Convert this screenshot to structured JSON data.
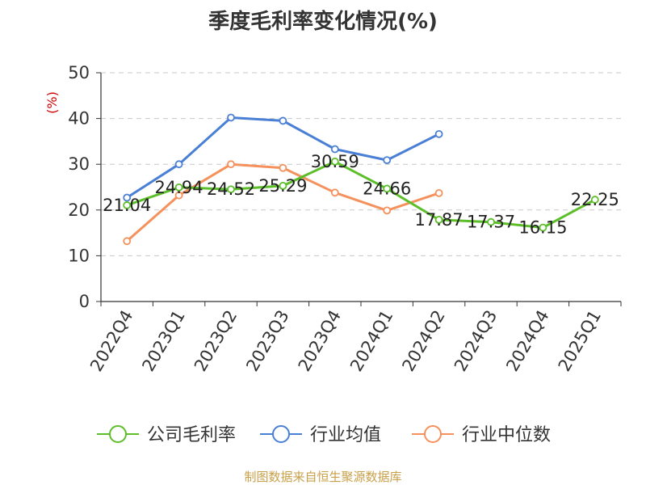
{
  "chart_data": {
    "type": "line",
    "title": "季度毛利率变化情况(%)",
    "ylabel": "(%)",
    "ylim": [
      0,
      50
    ],
    "yticks": [
      0,
      10,
      20,
      30,
      40,
      50
    ],
    "grid": true,
    "legend_position": "bottom",
    "categories": [
      "2022Q4",
      "2023Q1",
      "2023Q2",
      "2023Q3",
      "2023Q4",
      "2024Q1",
      "2024Q2",
      "2024Q3",
      "2024Q4",
      "2025Q1"
    ],
    "series": [
      {
        "name": "公司毛利率",
        "color": "#5cbf2a",
        "values": [
          21.04,
          24.94,
          24.52,
          25.29,
          30.59,
          24.66,
          17.87,
          17.37,
          16.15,
          22.25
        ],
        "labels": [
          "21.04",
          "24.94",
          "24.52",
          "25.29",
          "30.59",
          "24.66",
          "17.87",
          "17.37",
          "16.15",
          "22.25"
        ]
      },
      {
        "name": "行业均值",
        "color": "#4a7fd6",
        "values": [
          22.7,
          30.0,
          40.2,
          39.5,
          33.3,
          30.9,
          36.6,
          null,
          null,
          null
        ]
      },
      {
        "name": "行业中位数",
        "color": "#f5915c",
        "values": [
          13.2,
          23.2,
          30.0,
          29.2,
          23.8,
          19.9,
          23.7,
          null,
          null,
          null
        ]
      }
    ]
  },
  "source": "制图数据来自恒生聚源数据库"
}
